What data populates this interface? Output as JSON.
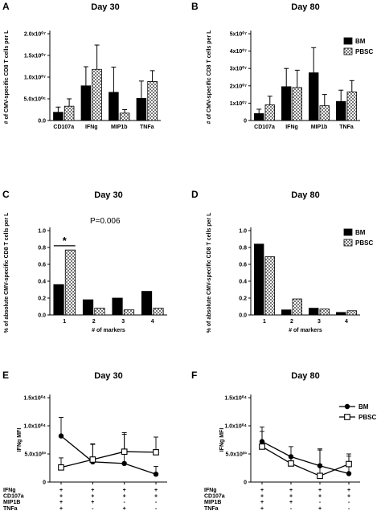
{
  "panels": [
    {
      "key": "A",
      "type": "bar",
      "title": "Day 30",
      "ylabel": "# of CMV-specific CD8 T cells per L",
      "categories": [
        "CD107a",
        "IFNg",
        "MIP1b",
        "TNFa"
      ],
      "ylim": [
        0,
        20000000
      ],
      "yticks": [
        0,
        5000000,
        10000000,
        15000000,
        20000000
      ],
      "ytick_labels": [
        "0.0",
        "5.0x10⁰⁶",
        "1.0x10⁰⁷",
        "1.5x10⁰⁷",
        "2.0x10⁰⁷"
      ],
      "series": [
        {
          "name": "BM",
          "values": [
            1900000,
            8000000,
            6500000,
            5100000
          ],
          "errors": [
            1200000,
            4400000,
            5800000,
            4000000
          ]
        },
        {
          "name": "PBSC",
          "values": [
            3300000,
            11800000,
            1700000,
            9000000
          ],
          "errors": [
            1700000,
            5600000,
            800000,
            2500000
          ]
        }
      ]
    },
    {
      "key": "B",
      "type": "bar",
      "title": "Day 80",
      "ylabel": "# of CMV-specific CD8 T cells per L",
      "categories": [
        "CD107a",
        "IFNg",
        "MIP1b",
        "TNFa"
      ],
      "ylim": [
        0,
        50000000
      ],
      "yticks": [
        0,
        10000000,
        20000000,
        30000000,
        40000000,
        50000000
      ],
      "ytick_labels": [
        "0",
        "1x10⁰⁷",
        "2x10⁰⁷",
        "3x10⁰⁷",
        "4x10⁰⁷",
        "5x10⁰⁷"
      ],
      "legend": [
        "BM",
        "PBSC"
      ],
      "series": [
        {
          "name": "BM",
          "values": [
            4000000,
            19500000,
            27500000,
            11000000
          ],
          "errors": [
            2500000,
            10500000,
            14500000,
            6500000
          ]
        },
        {
          "name": "PBSC",
          "values": [
            9000000,
            19000000,
            8500000,
            16500000
          ],
          "errors": [
            5000000,
            10000000,
            6500000,
            6500000
          ]
        }
      ]
    },
    {
      "key": "C",
      "type": "bar",
      "title": "Day 30",
      "ylabel": "% of absolute CMV-specific CD8 T cells per L",
      "xlabel": "# of markers",
      "categories": [
        "1",
        "2",
        "3",
        "4"
      ],
      "ylim": [
        0,
        1.0
      ],
      "yticks": [
        0,
        0.2,
        0.4,
        0.6,
        0.8,
        1.0
      ],
      "ytick_labels": [
        "0.0",
        "0.2",
        "0.4",
        "0.6",
        "0.8",
        "1.0"
      ],
      "annotation": "P=0.006",
      "significance": "*",
      "series": [
        {
          "name": "BM",
          "values": [
            0.36,
            0.18,
            0.2,
            0.28
          ]
        },
        {
          "name": "PBSC",
          "values": [
            0.77,
            0.08,
            0.06,
            0.08
          ]
        }
      ]
    },
    {
      "key": "D",
      "type": "bar",
      "title": "Day 80",
      "ylabel": "% of absolute CMV-specific CD8 T cells per L",
      "xlabel": "# of markers",
      "categories": [
        "1",
        "2",
        "3",
        "4"
      ],
      "ylim": [
        0,
        1.0
      ],
      "yticks": [
        0,
        0.2,
        0.4,
        0.6,
        0.8,
        1.0
      ],
      "ytick_labels": [
        "0.0",
        "0.2",
        "0.4",
        "0.6",
        "0.8",
        "1.0"
      ],
      "legend": [
        "BM",
        "PBSC"
      ],
      "series": [
        {
          "name": "BM",
          "values": [
            0.84,
            0.06,
            0.08,
            0.03
          ]
        },
        {
          "name": "PBSC",
          "values": [
            0.69,
            0.19,
            0.07,
            0.05
          ]
        }
      ]
    },
    {
      "key": "E",
      "type": "line",
      "title": "Day 30",
      "ylabel": "IFNg MFI",
      "ylim": [
        0,
        15000
      ],
      "yticks": [
        0,
        5000,
        10000,
        15000
      ],
      "ytick_labels": [
        "0",
        "5.0x10⁰³",
        "1.0x10⁰⁴",
        "1.5x10⁰⁴"
      ],
      "row_labels": [
        "IFNg",
        "CD107a",
        "MIP1B",
        "TNFa"
      ],
      "columns": [
        [
          "+",
          "+",
          "+",
          "+"
        ],
        [
          "+",
          "+",
          "+",
          "-"
        ],
        [
          "+",
          "+",
          "-",
          "+"
        ],
        [
          "+",
          "+",
          "-",
          "-"
        ]
      ],
      "series": [
        {
          "name": "BM",
          "values": [
            8200,
            3600,
            3300,
            1400
          ],
          "errors": [
            3300,
            3100,
            5200,
            1400
          ]
        },
        {
          "name": "PBSC",
          "values": [
            2600,
            4000,
            5400,
            5300
          ],
          "errors": [
            1700,
            2800,
            3400,
            2700
          ]
        }
      ]
    },
    {
      "key": "F",
      "type": "line",
      "title": "Day 80",
      "ylabel": "IFNg MFI",
      "ylim": [
        0,
        15000
      ],
      "yticks": [
        0,
        5000,
        10000,
        15000
      ],
      "ytick_labels": [
        "0",
        "5.0x10⁰³",
        "1.0x10⁰⁴",
        "1.5x10⁰⁴"
      ],
      "legend": [
        "BM",
        "PBSC"
      ],
      "row_labels": [
        "IFNg",
        "CD107a",
        "MIP1B",
        "TNFa"
      ],
      "columns": [
        [
          "+",
          "+",
          "+",
          "+"
        ],
        [
          "+",
          "+",
          "+",
          "-"
        ],
        [
          "+",
          "+",
          "-",
          "+"
        ],
        [
          "+",
          "+",
          "-",
          "-"
        ]
      ],
      "series": [
        {
          "name": "BM",
          "values": [
            7200,
            4500,
            2900,
            1500
          ],
          "errors": [
            2600,
            1800,
            2800,
            3100
          ]
        },
        {
          "name": "PBSC",
          "values": [
            6300,
            3300,
            1100,
            3200
          ],
          "errors": [
            2700,
            1200,
            4800,
            1800
          ]
        }
      ]
    }
  ]
}
